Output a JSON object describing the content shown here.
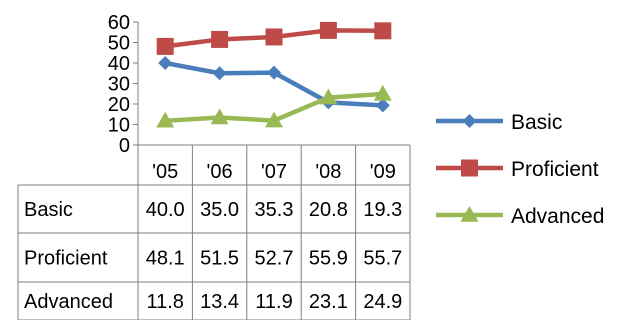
{
  "chart_data": {
    "type": "line",
    "categories": [
      "'05",
      "'06",
      "'07",
      "'08",
      "'09"
    ],
    "ylim": [
      0,
      60
    ],
    "yticks": [
      0,
      10,
      20,
      30,
      40,
      50,
      60
    ],
    "grid": false,
    "legend_position": "right",
    "series": [
      {
        "name": "Basic",
        "values": [
          40.0,
          35.0,
          35.3,
          20.8,
          19.3
        ],
        "color": "#4a7ebb",
        "marker": "diamond"
      },
      {
        "name": "Proficient",
        "values": [
          48.1,
          51.5,
          52.7,
          55.9,
          55.7
        ],
        "color": "#be4b48",
        "marker": "square"
      },
      {
        "name": "Advanced",
        "values": [
          11.8,
          13.4,
          11.9,
          23.1,
          24.9
        ],
        "color": "#98b954",
        "marker": "triangle"
      }
    ],
    "table_values": [
      [
        "40.0",
        "35.0",
        "35.3",
        "20.8",
        "19.3"
      ],
      [
        "48.1",
        "51.5",
        "52.7",
        "55.9",
        "55.7"
      ],
      [
        "11.8",
        "13.4",
        "11.9",
        "23.1",
        "24.9"
      ]
    ]
  }
}
